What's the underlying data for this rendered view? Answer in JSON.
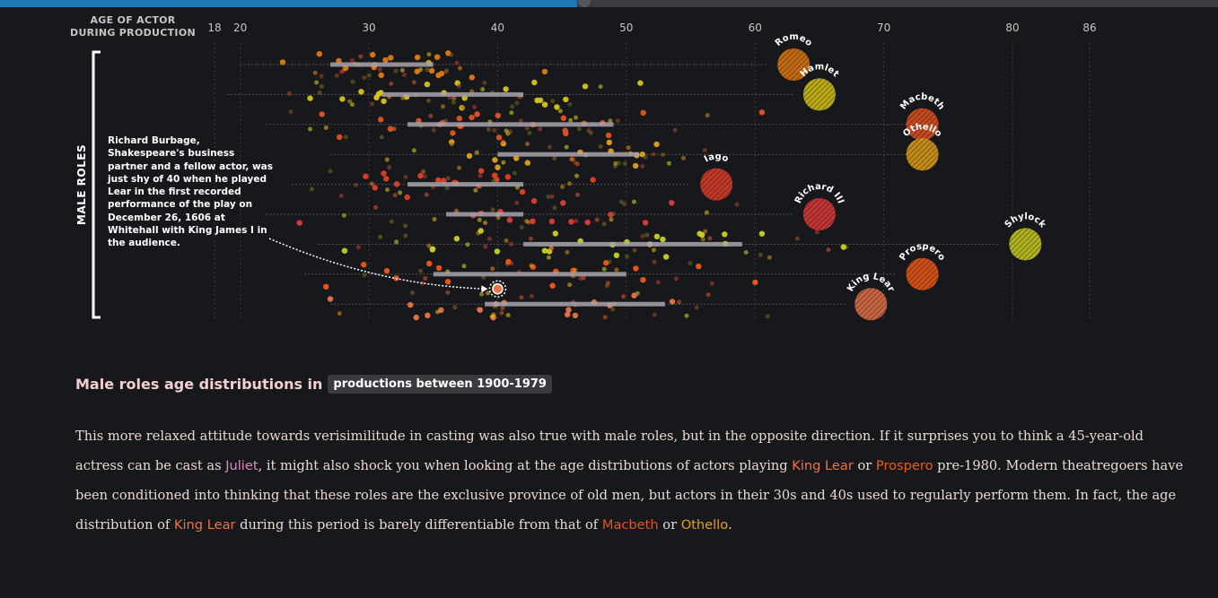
{
  "progress": {
    "fraction": 0.474,
    "knob_fraction": 0.48
  },
  "chart_data": {
    "type": "scatter",
    "axis_title_lines": [
      "AGE OF ACTOR",
      "DURING PRODUCTION"
    ],
    "x_ticks": [
      18,
      20,
      30,
      40,
      50,
      60,
      70,
      80,
      86
    ],
    "xlim": [
      18,
      86
    ],
    "grid": true,
    "bracket_label": "MALE ROLES",
    "roles": [
      {
        "name": "Romeo",
        "color": "#e07a10",
        "bar": [
          27,
          35
        ],
        "range": [
          20,
          61
        ],
        "circle": 63,
        "dot_center": 32,
        "dot_spread": 4,
        "dots": 45
      },
      {
        "name": "Hamlet",
        "color": "#d8c416",
        "bar": [
          31,
          42
        ],
        "range": [
          19,
          63
        ],
        "circle": 65,
        "dot_center": 36,
        "dot_spread": 6,
        "dots": 55
      },
      {
        "name": "Macbeth",
        "color": "#e45322",
        "bar": [
          33,
          49
        ],
        "range": [
          22,
          72
        ],
        "circle": 73,
        "dot_center": 41,
        "dot_spread": 7,
        "dots": 55
      },
      {
        "name": "Othello",
        "color": "#e2a117",
        "bar": [
          40,
          51
        ],
        "range": [
          27,
          72
        ],
        "circle": 73,
        "dot_center": 45,
        "dot_spread": 7,
        "dots": 45
      },
      {
        "name": "Iago",
        "color": "#e0402a",
        "bar": [
          33,
          42
        ],
        "range": [
          24,
          55
        ],
        "circle": 57,
        "dot_center": 37,
        "dot_spread": 6,
        "dots": 45
      },
      {
        "name": "Richard III",
        "color": "#e23a3a",
        "bar": [
          36,
          42
        ],
        "range": [
          22,
          63
        ],
        "circle": 65,
        "dot_center": 40,
        "dot_spread": 7,
        "dots": 40
      },
      {
        "name": "Shylock",
        "color": "#c9cf20",
        "bar": [
          42,
          59
        ],
        "range": [
          26,
          79
        ],
        "circle": 81,
        "dot_center": 50,
        "dot_spread": 9,
        "dots": 55
      },
      {
        "name": "Prospero",
        "color": "#ef5a18",
        "bar": [
          35,
          50
        ],
        "range": [
          25,
          71
        ],
        "circle": 73,
        "dot_center": 43,
        "dot_spread": 8,
        "dots": 45
      },
      {
        "name": "King Lear",
        "color": "#e8744a",
        "bar": [
          39,
          53
        ],
        "range": [
          27,
          67
        ],
        "circle": 69,
        "dot_center": 44,
        "dot_spread": 8,
        "dots": 45
      }
    ],
    "annotation": {
      "text": "Richard Burbage, Shakespeare's business partner and a fellow actor, was just shy of 40 when he played Lear in the first recorded performance of the play on December 26, 1606 at Whitehall with King James I in the audience.",
      "role": "King Lear",
      "age": 40
    }
  },
  "heading": {
    "text": "Male roles age distributions in",
    "pill": "productions between 1900-1979"
  },
  "paragraph": {
    "s1": "This more relaxed attitude towards verisimilitude in casting was also true with male roles, but in the opposite direction. If it surprises you to think a 45-year-old actress can be cast as ",
    "juliet": "Juliet",
    "s2": ", it might also shock you when looking at the age distributions of actors playing ",
    "king_lear": "King Lear",
    "s3": " or ",
    "prospero": "Prospero",
    "s4": " pre-1980. Modern theatregoers have been conditioned into thinking that these roles are the exclusive province of old men, but actors in their 30s and 40s used to regularly perform them. In fact, the age distribution of ",
    "king_lear_2": "King Lear",
    "s5": " during this period is barely differentiable from that of ",
    "macbeth": "Macbeth",
    "s6": " or ",
    "othello": "Othello",
    "s7": "."
  },
  "colors": {
    "background": "#17181b",
    "accent_progress": "#1f77b4",
    "juliet": "#d88bb8",
    "king_lear": "#e8744a",
    "prospero": "#ef5a18",
    "macbeth": "#e45322",
    "othello": "#e2a117"
  }
}
